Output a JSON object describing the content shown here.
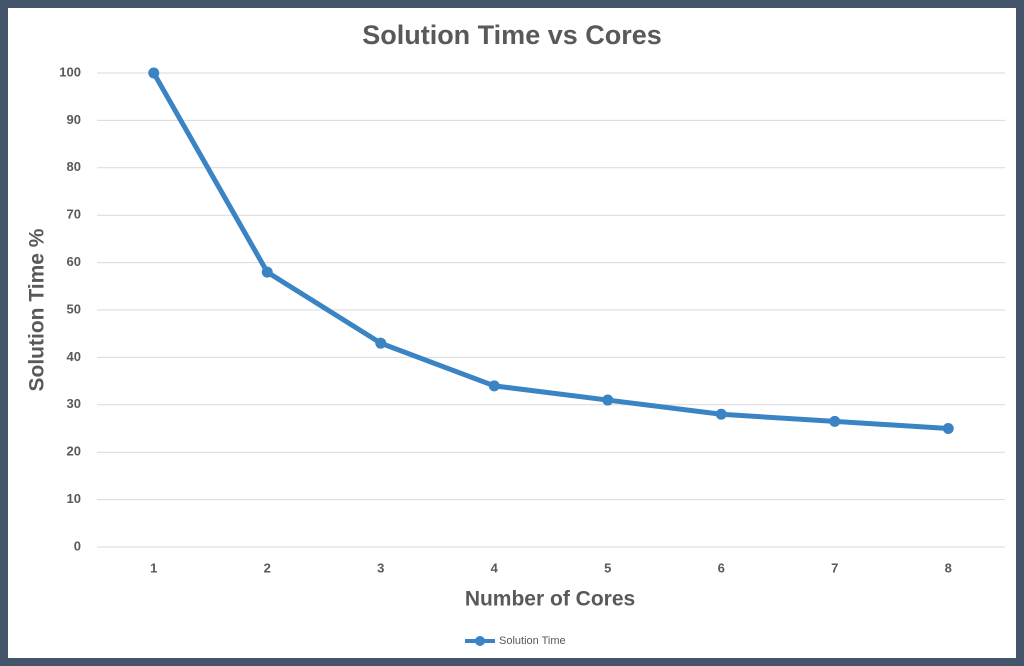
{
  "chart_data": {
    "type": "line",
    "title": "Solution Time vs Cores",
    "x_label": "Number of Cores",
    "y_label": "Solution Time %",
    "categories": [
      "1",
      "2",
      "3",
      "4",
      "5",
      "6",
      "7",
      "8"
    ],
    "series": [
      {
        "name": "Solution Time",
        "color": "#3a84c4",
        "values": [
          100,
          58,
          43,
          34,
          31,
          28,
          26.5,
          25
        ]
      }
    ],
    "ylim": [
      0,
      100
    ],
    "yticks": [
      0,
      10,
      20,
      30,
      40,
      50,
      60,
      70,
      80,
      90,
      100
    ],
    "grid": true,
    "legend": "bottom"
  }
}
